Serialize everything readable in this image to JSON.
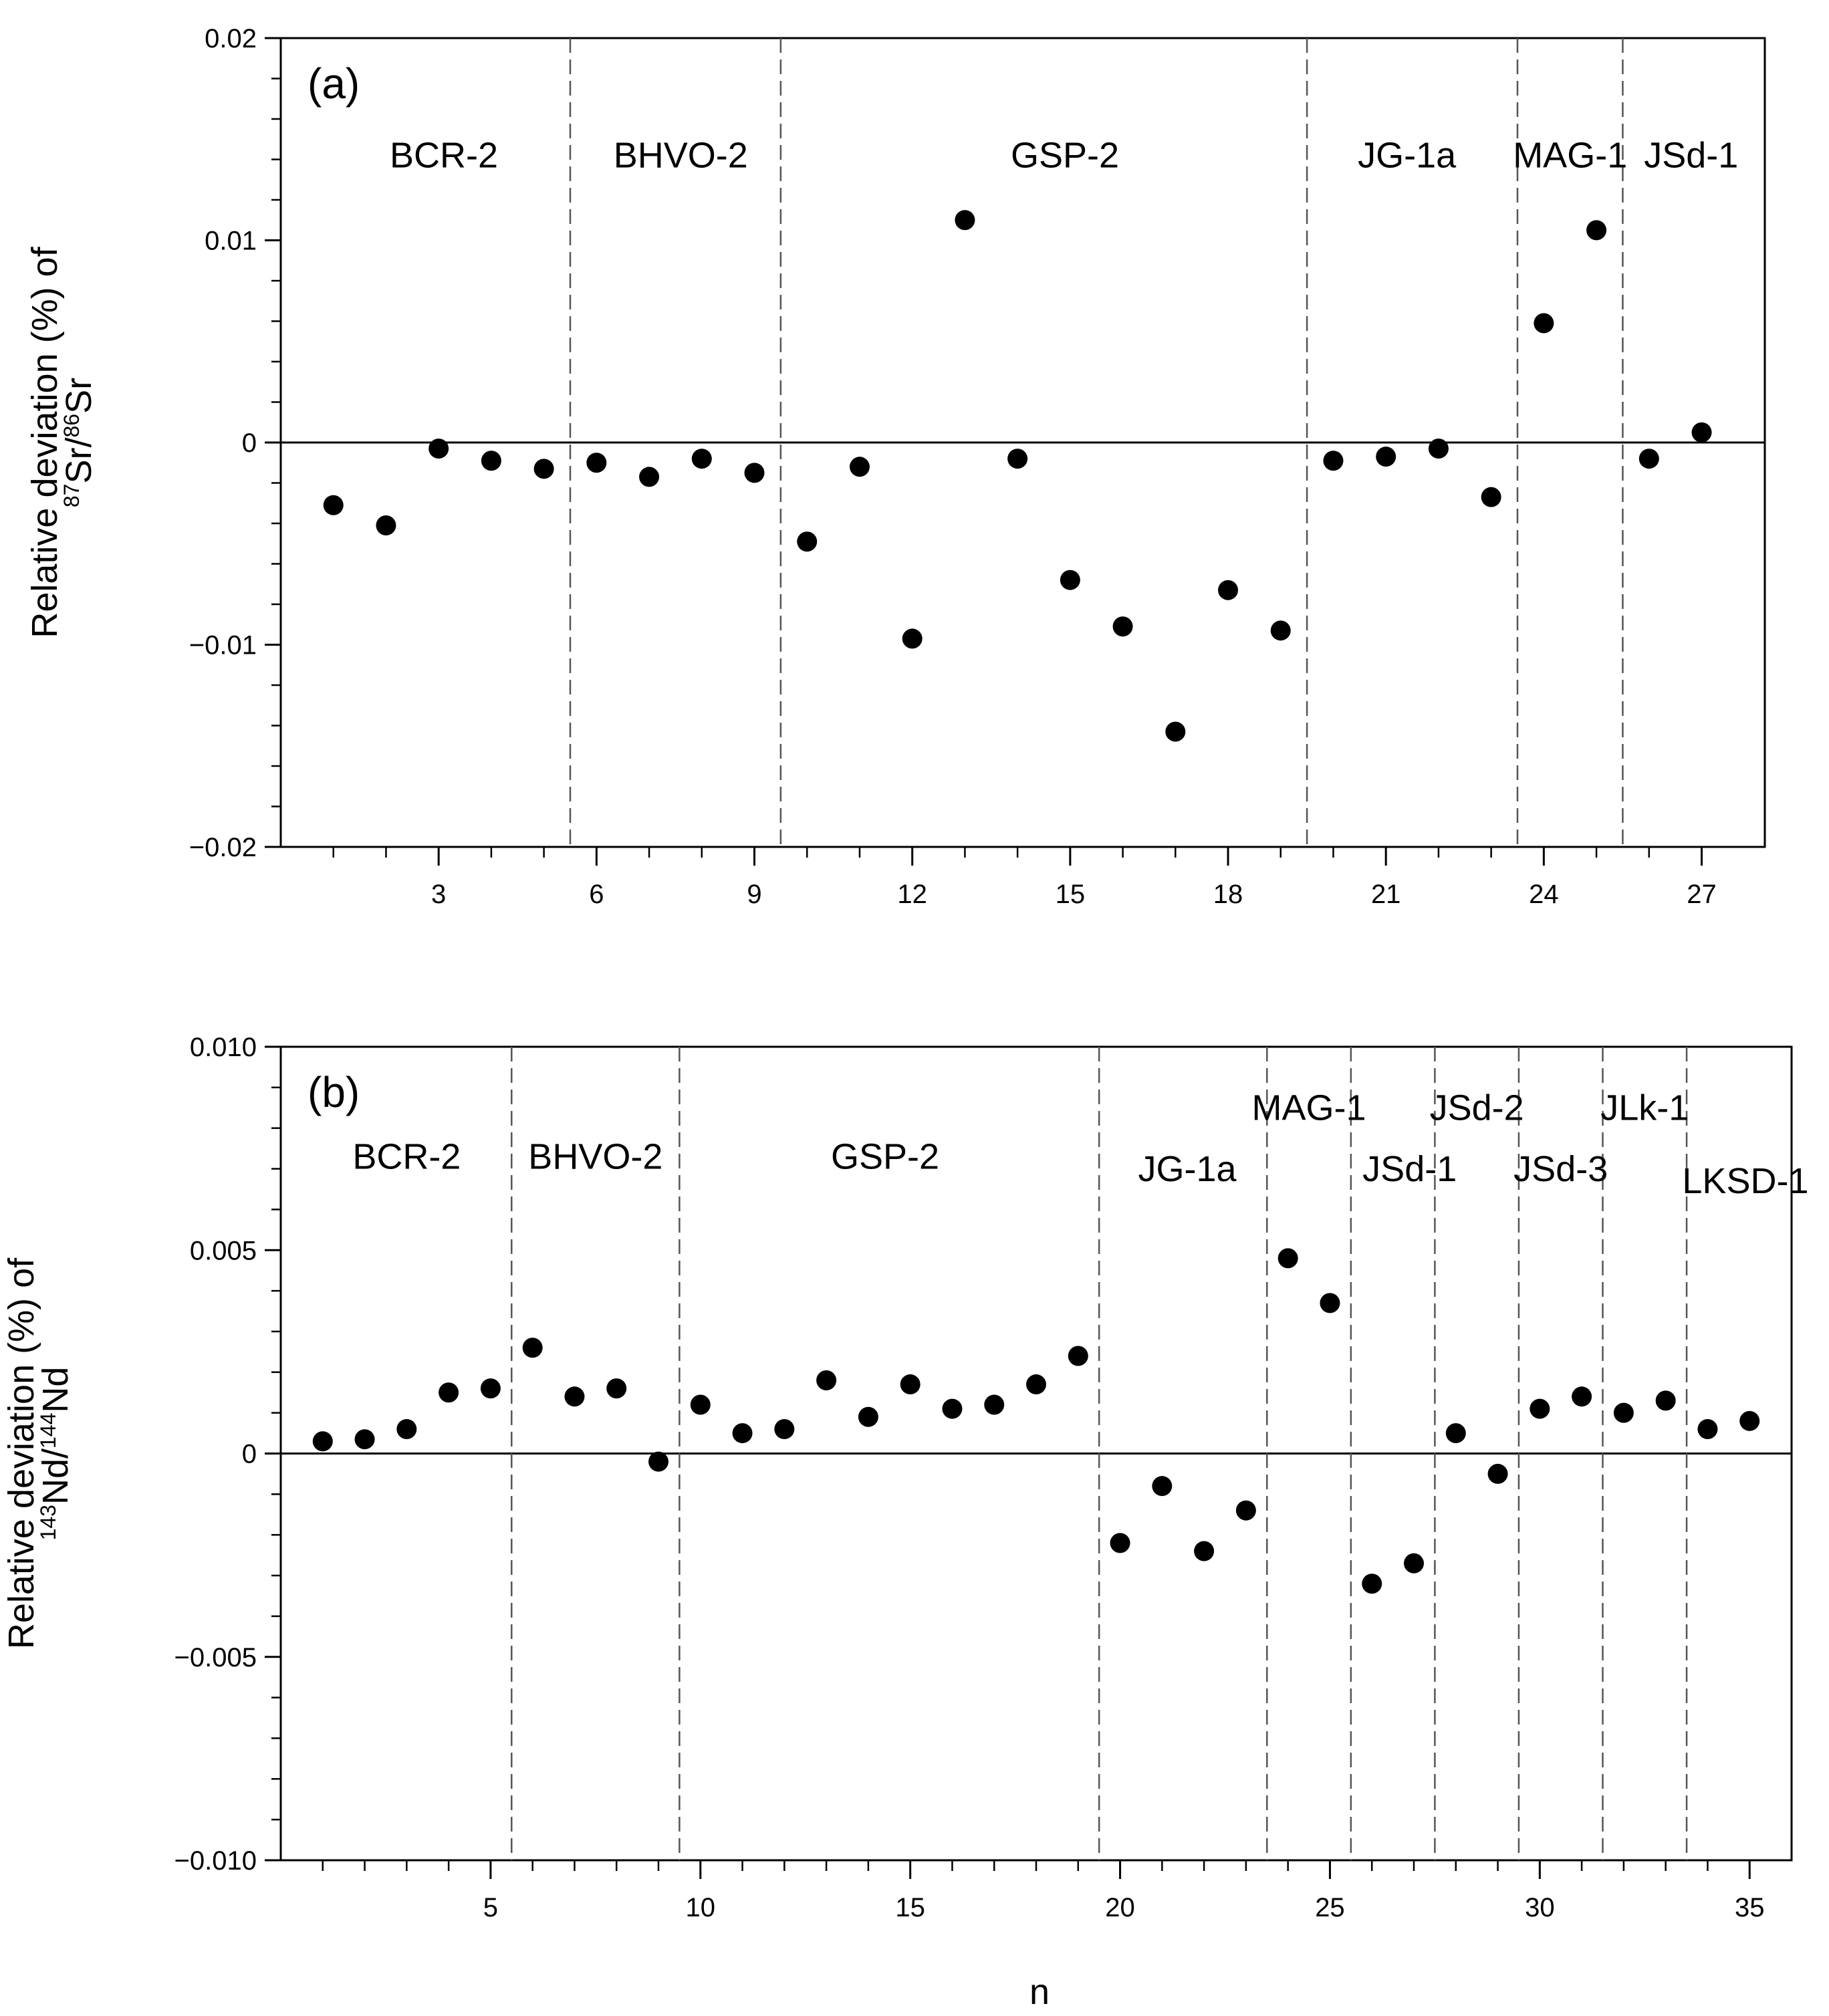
{
  "figure": {
    "shared_xlabel": "n"
  },
  "chart_data": [
    {
      "type": "scatter",
      "panel_label": "(a)",
      "ylabel_prefix": "Relative deviation (%) of",
      "ylabel_isotope": {
        "sup1": "87",
        "el1": "Sr/",
        "sup2": "86",
        "el2": "Sr"
      },
      "xlim": [
        0,
        28.2
      ],
      "ylim": [
        -0.02,
        0.02
      ],
      "xticks": [
        3,
        6,
        9,
        12,
        15,
        18,
        21,
        24,
        27
      ],
      "xtick_labels": [
        "3",
        "6",
        "9",
        "12",
        "15",
        "18",
        "21",
        "24",
        "27"
      ],
      "xminor": [
        1,
        2,
        4,
        5,
        7,
        8,
        10,
        11,
        13,
        14,
        16,
        17,
        19,
        20,
        22,
        23,
        25,
        26
      ],
      "yticks": [
        -0.02,
        -0.01,
        0,
        0.01,
        0.02
      ],
      "ytick_labels": [
        "−0.02",
        "−0.01",
        "0",
        "0.01",
        "0.02"
      ],
      "yminor_step": 0.002,
      "dividers": [
        5.5,
        9.5,
        19.5,
        23.5,
        25.5
      ],
      "groups": [
        {
          "label": "BCR-2",
          "x": 3.1,
          "y": 0.0136
        },
        {
          "label": "BHVO-2",
          "x": 7.6,
          "y": 0.0136
        },
        {
          "label": "GSP-2",
          "x": 14.9,
          "y": 0.0136
        },
        {
          "label": "JG-1a",
          "x": 21.4,
          "y": 0.0136
        },
        {
          "label": "MAG-1",
          "x": 24.5,
          "y": 0.0136
        },
        {
          "label": "JSd-1",
          "x": 26.8,
          "y": 0.0136
        }
      ],
      "x": [
        1,
        2,
        3,
        4,
        5,
        6,
        7,
        8,
        9,
        10,
        11,
        12,
        13,
        14,
        15,
        16,
        17,
        18,
        19,
        20,
        21,
        22,
        23,
        24,
        25,
        26,
        27
      ],
      "y": [
        -0.0031,
        -0.0041,
        -0.0003,
        -0.0009,
        -0.0013,
        -0.001,
        -0.0017,
        -0.0008,
        -0.0015,
        -0.0049,
        -0.0012,
        -0.0097,
        0.011,
        -0.0008,
        -0.0068,
        -0.0091,
        -0.0143,
        -0.0073,
        -0.0093,
        -0.0009,
        -0.0007,
        -0.0003,
        -0.0027,
        0.0059,
        0.0105,
        -0.0008,
        0.0005
      ]
    },
    {
      "type": "scatter",
      "panel_label": "(b)",
      "ylabel_prefix": "Relative deviation (%) of",
      "ylabel_isotope": {
        "sup1": "143",
        "el1": "Nd/",
        "sup2": "144",
        "el2": "Nd"
      },
      "xlim": [
        0,
        36.0
      ],
      "ylim": [
        -0.01,
        0.01
      ],
      "xticks": [
        5,
        10,
        15,
        20,
        25,
        30,
        35
      ],
      "xtick_labels": [
        "5",
        "10",
        "15",
        "20",
        "25",
        "30",
        "35"
      ],
      "xminor": [
        1,
        2,
        3,
        4,
        6,
        7,
        8,
        9,
        11,
        12,
        13,
        14,
        16,
        17,
        18,
        19,
        21,
        22,
        23,
        24,
        26,
        27,
        28,
        29,
        31,
        32,
        33,
        34
      ],
      "yticks": [
        -0.01,
        -0.005,
        0,
        0.005,
        0.01
      ],
      "ytick_labels": [
        "−0.010",
        "−0.005",
        "0",
        "0.005",
        "0.010"
      ],
      "yminor_step": 0.001,
      "dividers": [
        5.5,
        9.5,
        19.5,
        23.5,
        25.5,
        27.5,
        29.5,
        31.5,
        33.5
      ],
      "groups": [
        {
          "label": "BCR-2",
          "x": 3.0,
          "y": 0.007
        },
        {
          "label": "BHVO-2",
          "x": 7.5,
          "y": 0.007
        },
        {
          "label": "GSP-2",
          "x": 14.4,
          "y": 0.007
        },
        {
          "label": "JG-1a",
          "x": 21.6,
          "y": 0.0067
        },
        {
          "label": "MAG-1",
          "x": 24.5,
          "y": 0.0082
        },
        {
          "label": "JSd-1",
          "x": 26.9,
          "y": 0.0067
        },
        {
          "label": "JSd-2",
          "x": 28.5,
          "y": 0.0082
        },
        {
          "label": "JSd-3",
          "x": 30.5,
          "y": 0.0067
        },
        {
          "label": "JLk-1",
          "x": 32.5,
          "y": 0.0082
        },
        {
          "label": "LKSD-1",
          "x": 34.9,
          "y": 0.0064
        }
      ],
      "x": [
        1,
        2,
        3,
        4,
        5,
        6,
        7,
        8,
        9,
        10,
        11,
        12,
        13,
        14,
        15,
        16,
        17,
        18,
        19,
        20,
        21,
        22,
        23,
        24,
        25,
        26,
        27,
        28,
        29,
        30,
        31,
        32,
        33,
        34,
        35
      ],
      "y": [
        0.0003,
        0.00035,
        0.0006,
        0.0015,
        0.0016,
        0.0026,
        0.0014,
        0.0016,
        -0.0002,
        0.0012,
        0.0005,
        0.0006,
        0.0018,
        0.0009,
        0.0017,
        0.0011,
        0.0012,
        0.0017,
        0.0024,
        -0.0022,
        -0.0008,
        -0.0024,
        -0.0014,
        0.0048,
        0.0037,
        -0.0032,
        -0.0027,
        0.0005,
        -0.0005,
        0.0011,
        0.0014,
        0.001,
        0.0013,
        0.0006,
        0.0008
      ]
    }
  ]
}
